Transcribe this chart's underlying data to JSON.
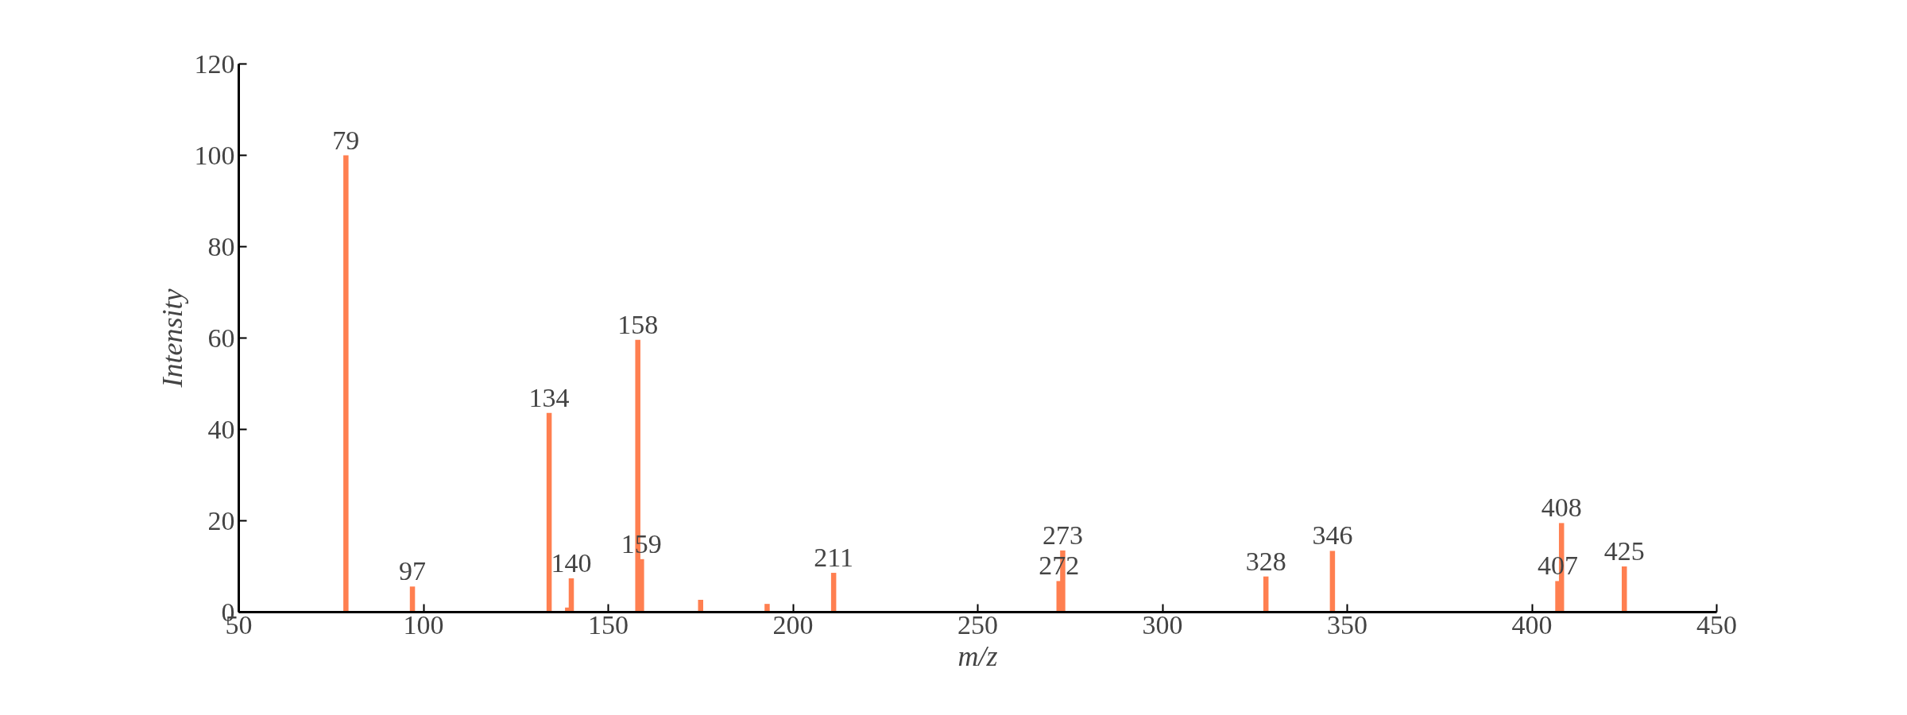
{
  "chart_data": {
    "type": "bar",
    "xlabel": "m/z",
    "ylabel": "Intensity",
    "x": [
      79,
      97,
      134,
      139,
      140,
      158,
      159,
      175,
      193,
      211,
      272,
      273,
      328,
      346,
      407,
      408,
      425
    ],
    "values": [
      100,
      5.6,
      43.6,
      1.0,
      7.4,
      59.6,
      11.6,
      2.7,
      1.8,
      8.6,
      6.8,
      13.5,
      7.8,
      13.4,
      6.8,
      19.5,
      10
    ],
    "color": "#ff7f50",
    "xlim": [
      50,
      450
    ],
    "xticks": [
      50,
      100,
      150,
      200,
      250,
      300,
      350,
      400,
      450
    ],
    "ylim": [
      0,
      120
    ],
    "yticks": [
      0,
      20,
      40,
      60,
      80,
      100,
      120
    ],
    "grid": false,
    "annotations": [
      {
        "text": "79",
        "x": 79,
        "y": 100
      },
      {
        "text": "97",
        "x": 97,
        "y": 5.6
      },
      {
        "text": "134",
        "x": 134,
        "y": 43.6
      },
      {
        "text": "140",
        "x": 140,
        "y": 7.4
      },
      {
        "text": "158",
        "x": 158,
        "y": 59.6
      },
      {
        "text": "159",
        "x": 159,
        "y": 11.6
      },
      {
        "text": "211",
        "x": 211,
        "y": 8.6
      },
      {
        "text": "272",
        "x": 272,
        "y": 6.8
      },
      {
        "text": "273",
        "x": 273,
        "y": 13.5
      },
      {
        "text": "328",
        "x": 328,
        "y": 7.8
      },
      {
        "text": "346",
        "x": 346,
        "y": 13.4
      },
      {
        "text": "407",
        "x": 407,
        "y": 6.8
      },
      {
        "text": "408",
        "x": 408,
        "y": 19.5
      },
      {
        "text": "425",
        "x": 425,
        "y": 10
      }
    ]
  }
}
